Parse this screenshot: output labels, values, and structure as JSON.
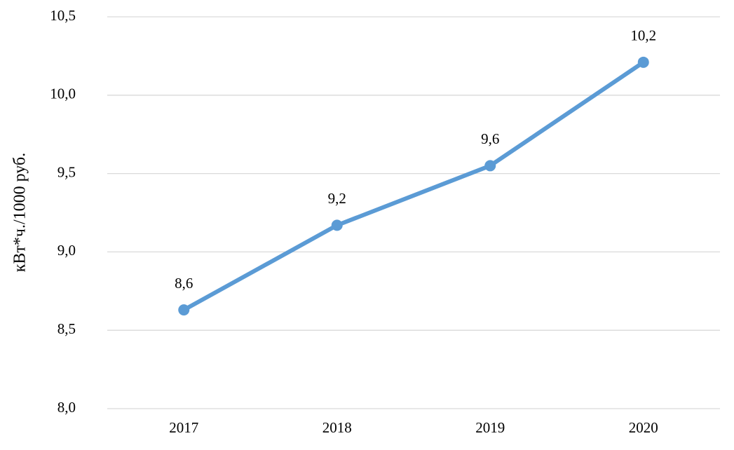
{
  "chart_data": {
    "type": "line",
    "y_axis_label": "кВт*ч./1000 руб.",
    "categories": [
      "2017",
      "2018",
      "2019",
      "2020"
    ],
    "values": [
      8.63,
      9.17,
      9.55,
      10.21
    ],
    "value_labels": [
      "8,6",
      "9,2",
      "9,6",
      "10,2"
    ],
    "color": "#5b9bd5",
    "ylim": [
      8.0,
      10.5
    ],
    "yticks": [
      {
        "value": 8.0,
        "label": "8,0"
      },
      {
        "value": 8.5,
        "label": "8,5"
      },
      {
        "value": 9.0,
        "label": "9,0"
      },
      {
        "value": 9.5,
        "label": "9,5"
      },
      {
        "value": 10.0,
        "label": "10,0"
      },
      {
        "value": 10.5,
        "label": "10,5"
      }
    ],
    "grid": true
  }
}
